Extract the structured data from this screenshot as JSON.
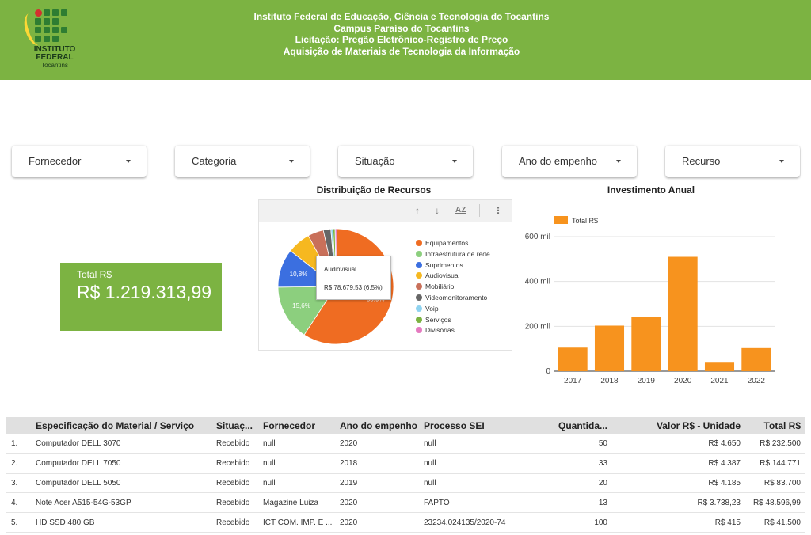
{
  "header": {
    "logo_line1": "INSTITUTO",
    "logo_line2": "FEDERAL",
    "logo_line3": "Tocantins",
    "title_lines": [
      "Instituto Federal de Educação, Ciência e Tecnologia do Tocantins",
      "Campus Paraíso do Tocantins",
      "Licitação: Pregão Eletrônico-Registro de Preço",
      "Aquisição de Materiais de Tecnologia da Informação"
    ],
    "bg_color": "#7cb342"
  },
  "filters": [
    {
      "label": "Fornecedor"
    },
    {
      "label": "Categoria"
    },
    {
      "label": "Situação"
    },
    {
      "label": "Ano do empenho"
    },
    {
      "label": "Recurso"
    }
  ],
  "scorecard": {
    "label": "Total R$",
    "value": "R$ 1.219.313,99",
    "color": "#7cb342"
  },
  "chart_data": [
    {
      "type": "pie",
      "title": "Distribuição de Recursos",
      "slices": [
        {
          "name": "Equipamentos",
          "value": 58.9,
          "color": "#ef6c22"
        },
        {
          "name": "Infraestrutura de rede",
          "value": 15.6,
          "color": "#8ccf7e"
        },
        {
          "name": "Suprimentos",
          "value": 10.8,
          "color": "#3b6fe0"
        },
        {
          "name": "Audiovisual",
          "value": 6.5,
          "color": "#f6b820"
        },
        {
          "name": "Mobiliário",
          "value": 4.4,
          "color": "#c9705a"
        },
        {
          "name": "Videomonitoramento",
          "value": 2.1,
          "color": "#666666"
        },
        {
          "name": "Voip",
          "value": 0.6,
          "color": "#8fd3f0"
        },
        {
          "name": "Serviços",
          "value": 0.6,
          "color": "#7cb342"
        },
        {
          "name": "Divisórias",
          "value": 0.5,
          "color": "#e57ac0"
        }
      ],
      "slice_labels": [
        "15,6%",
        "10,8%",
        "58,9%"
      ],
      "legend_position": "right",
      "tooltip": {
        "name": "Audiovisual",
        "value": "R$ 78.679,53 (6,5%)"
      },
      "toolbar": {
        "up_icon": "arrow-up-icon",
        "down_icon": "arrow-down-icon",
        "sort_icon": "sort-az-icon",
        "sort_label": "AZ",
        "more_icon": "more-vertical-icon"
      }
    },
    {
      "type": "bar",
      "title": "Investimento Anual",
      "legend": "Total R$",
      "legend_position": "top-left",
      "categories": [
        "2017",
        "2018",
        "2019",
        "2020",
        "2021",
        "2022"
      ],
      "values": [
        105000,
        203000,
        240000,
        510000,
        38000,
        103000
      ],
      "ylim": [
        0,
        600000
      ],
      "yticks": [
        {
          "v": 0,
          "label": "0"
        },
        {
          "v": 200000,
          "label": "200 mil"
        },
        {
          "v": 400000,
          "label": "400 mil"
        },
        {
          "v": 600000,
          "label": "600 mil"
        }
      ],
      "grid": true,
      "color": "#f7931e"
    }
  ],
  "table": {
    "columns": [
      "",
      "Especificação do Material / Serviço",
      "Situaç...",
      "Fornecedor",
      "Ano do empenho",
      "Processo SEI",
      "Quantida...",
      "Valor R$ - Unidade",
      "Total R$"
    ],
    "rows": [
      [
        "1.",
        "Computador DELL 3070",
        "Recebido",
        "null",
        "2020",
        "null",
        "50",
        "R$ 4.650",
        "R$ 232.500"
      ],
      [
        "2.",
        "Computador DELL 7050",
        "Recebido",
        "null",
        "2018",
        "null",
        "33",
        "R$ 4.387",
        "R$ 144.771"
      ],
      [
        "3.",
        "Computador DELL 5050",
        "Recebido",
        "null",
        "2019",
        "null",
        "20",
        "R$ 4.185",
        "R$ 83.700"
      ],
      [
        "4.",
        "Note Acer A515-54G-53GP",
        "Recebido",
        "Magazine Luiza",
        "2020",
        "FAPTO",
        "13",
        "R$ 3.738,23",
        "R$ 48.596,99"
      ],
      [
        "5.",
        "HD SSD 480 GB",
        "Recebido",
        "ICT COM. IMP. E ...",
        "2020",
        "23234.024135/2020-74",
        "100",
        "R$ 415",
        "R$ 41.500"
      ]
    ]
  }
}
